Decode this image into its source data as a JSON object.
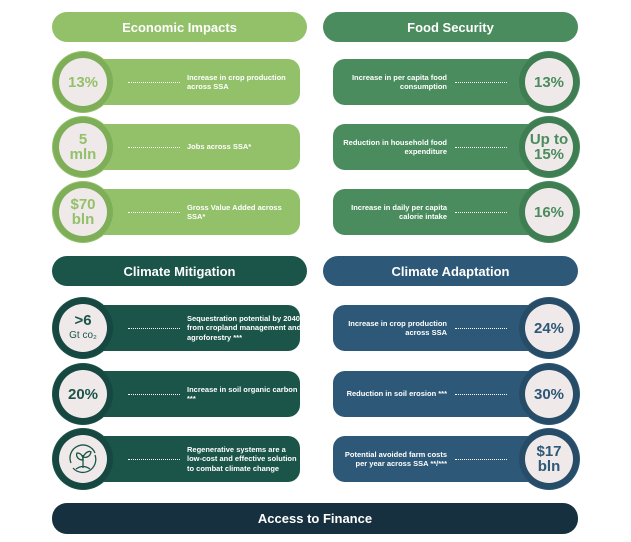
{
  "colors": {
    "economic": "#93c16a",
    "economic_ring": "#7fae58",
    "food": "#4a8c5e",
    "food_ring": "#3f7d52",
    "mitigation": "#1b5449",
    "mitigation_ring": "#164740",
    "adaptation": "#2e5877",
    "adaptation_ring": "#264c68",
    "finance": "#17303f",
    "circle_fill": "#efe9e9"
  },
  "sections": [
    {
      "title": "Economic Impacts",
      "items": [
        {
          "value": "13%",
          "desc": "Increase in crop production across SSA"
        },
        {
          "value": "5",
          "unit": "mln",
          "desc": "Jobs across SSA*"
        },
        {
          "value": "$70",
          "unit": "bln",
          "desc": "Gross Value Added across SSA*"
        }
      ]
    },
    {
      "title": "Food Security",
      "items": [
        {
          "value": "13%",
          "desc": "Increase in per capita food consumption"
        },
        {
          "value": "Up to",
          "unit": "15%",
          "desc": "Reduction in household food expenditure"
        },
        {
          "value": "16%",
          "desc": "Increase in daily per capita calorie intake"
        }
      ]
    },
    {
      "title": "Climate Mitigation",
      "items": [
        {
          "value": ">6",
          "unit": "Gt co₂",
          "desc": "Sequestration potential by 2040 from cropland management and agroforestry ***"
        },
        {
          "value": "20%",
          "desc": "Increase in soil organic carbon ***"
        },
        {
          "icon": "seedling-cycle-icon",
          "desc": "Regenerative systems are a low-cost and effective solution to combat climate change"
        }
      ]
    },
    {
      "title": "Climate Adaptation",
      "items": [
        {
          "value": "24%",
          "desc": "Increase in crop production across SSA"
        },
        {
          "value": "30%",
          "desc": "Reduction in soil erosion ***"
        },
        {
          "value": "$17",
          "unit": "bln",
          "desc": "Potential avoided farm costs per year across SSA **/***"
        }
      ]
    }
  ],
  "footer": {
    "title": "Access to Finance"
  }
}
